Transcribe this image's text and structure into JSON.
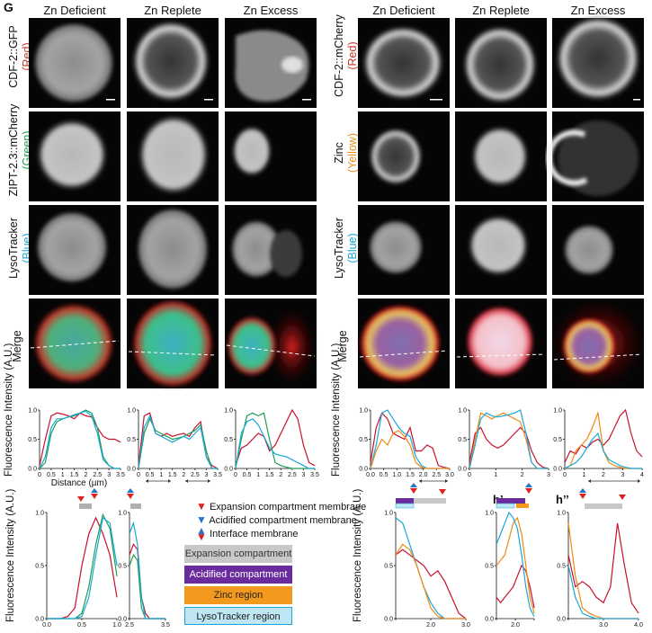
{
  "figure_label": "G",
  "left": {
    "columns": [
      "Zn Deficient",
      "Zn Replete",
      "Zn Excess"
    ],
    "rows": [
      {
        "name": "CDF-2::GFP",
        "channel": "(Red)",
        "channel_color": "#c0392b"
      },
      {
        "name": "ZIPT-2.3::mCherry",
        "channel": "(Green)",
        "channel_color": "#1e9e4a"
      },
      {
        "name": "LysoTracker",
        "channel": "(Blue)",
        "channel_color": "#1ba4d6"
      },
      {
        "name": "Merge",
        "channel": "",
        "channel_color": "#111111"
      }
    ]
  },
  "right": {
    "columns": [
      "Zn Deficient",
      "Zn Replete",
      "Zn Excess"
    ],
    "rows": [
      {
        "name": "CDF-2::mCherry",
        "channel": "(Red)",
        "channel_color": "#c0392b"
      },
      {
        "name": "Zinc",
        "channel": "(Yellow)",
        "channel_color": "#e8901c"
      },
      {
        "name": "LysoTracker",
        "channel": "(Blue)",
        "channel_color": "#1ba4d6"
      },
      {
        "name": "Merge",
        "channel": "",
        "channel_color": "#111111"
      }
    ]
  },
  "profile_axes": {
    "ylabel": "Fluorescence Intensity (A.U.)",
    "xlabel": "Distance (µm)",
    "yticks": [
      "0.0",
      "0.5",
      "1.0"
    ],
    "xticks": [
      "0",
      "0.5",
      "1",
      "1.5",
      "2",
      "2.5",
      "3",
      "3.5"
    ],
    "right_xticks_short": [
      "0",
      "1",
      "2",
      "3",
      "4"
    ],
    "right_xticks_long": [
      "0.0",
      "0.5",
      "1.0",
      "1.5",
      "2.0",
      "2.5",
      "3.0"
    ]
  },
  "zoom_axes": {
    "ylabel": "Fluorescence Intensity (A.U.)",
    "yticks": [
      "0.0",
      "0.5",
      "1.0"
    ],
    "left_a_xticks": [
      "0.0",
      "0.5",
      "1.0"
    ],
    "left_b_xticks": [
      "2.5",
      "3.5"
    ],
    "right_h_xticks": [
      "2.0",
      "3.0"
    ],
    "right_hp_xticks": [
      "2.0"
    ],
    "right_hpp_xticks": [
      "3.0",
      "4.0"
    ],
    "panel_h1": "h’",
    "panel_h2": "h’’"
  },
  "legend": {
    "markers": [
      {
        "label": "Expansion compartment membrane",
        "color": "#e02020"
      },
      {
        "label": "Acidified compartment membrane",
        "color": "#2574c8"
      },
      {
        "label": "Interface membrane",
        "color": "#e02020"
      }
    ],
    "boxes": [
      {
        "label": "Expansion compartment",
        "fill": "#c8c8c8",
        "text": "#333333",
        "border": "#c8c8c8"
      },
      {
        "label": "Acidified compartment",
        "fill": "#6a2c9c",
        "text": "#ffffff",
        "border": "#6a2c9c"
      },
      {
        "label": "Zinc region",
        "fill": "#f39a1e",
        "text": "#222222",
        "border": "#f39a1e"
      },
      {
        "label": "LysoTracker region",
        "fill": "#bfe6f5",
        "text": "#222222",
        "border": "#1ba4d6"
      }
    ]
  },
  "colors": {
    "red": "#c8102e",
    "green": "#1f9e55",
    "cyan": "#18a8d8",
    "orange": "#f08a12"
  }
}
